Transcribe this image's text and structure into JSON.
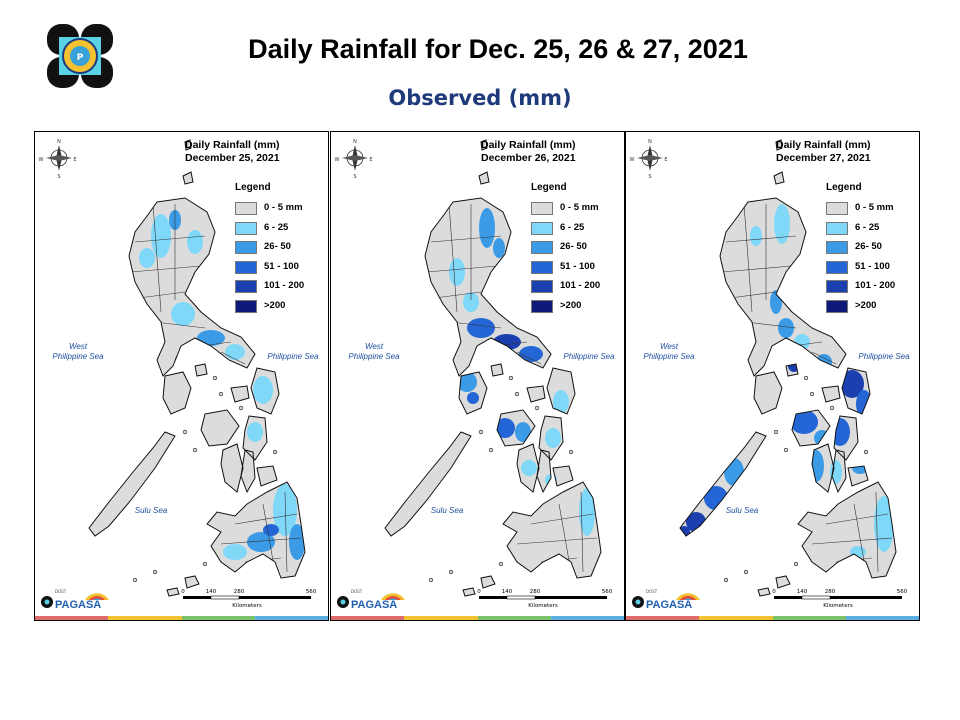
{
  "title": "Daily Rainfall for Dec. 25, 26 & 27, 2021",
  "subtitle": "Observed (mm)",
  "legend": {
    "title": "Legend",
    "items": [
      {
        "label": "0 - 5 mm",
        "color": "#dcdcdc"
      },
      {
        "label": "6 - 25",
        "color": "#80d8f8"
      },
      {
        "label": "26- 50",
        "color": "#3c9be6"
      },
      {
        "label": "51 - 100",
        "color": "#2466d6"
      },
      {
        "label": "101 - 200",
        "color": "#1c3fb0"
      },
      {
        "label": ">200",
        "color": "#0e1a7a"
      }
    ]
  },
  "seas": {
    "west": "West\nPhilippine Sea",
    "east": "Philippine Sea",
    "sulu": "Sulu Sea"
  },
  "scale": {
    "ticks": [
      "0",
      "140",
      "280",
      "560"
    ],
    "unit": "Kilometers"
  },
  "brand": {
    "name": "PAGASA",
    "tag": "DOST"
  },
  "panels": [
    {
      "heading": "Daily Rainfall (mm)",
      "date": "December 25, 2021"
    },
    {
      "heading": "Daily Rainfall (mm)",
      "date": "December 26, 2021"
    },
    {
      "heading": "Daily Rainfall (mm)",
      "date": "December 27, 2021"
    }
  ]
}
